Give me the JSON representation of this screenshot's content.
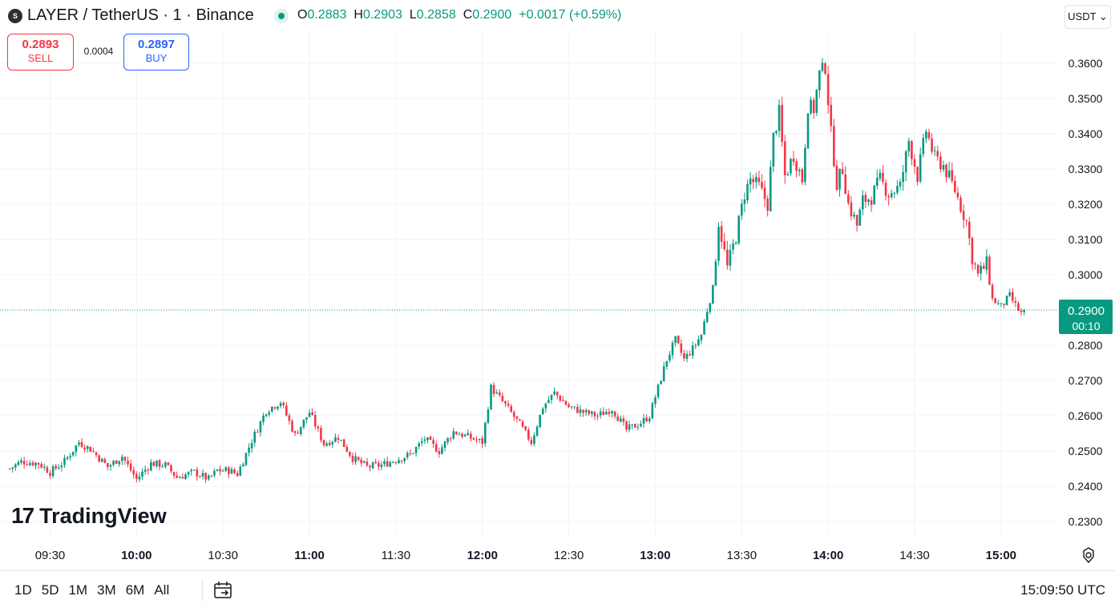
{
  "header": {
    "symbol_logo": "S",
    "title": "LAYER / TetherUS · 1 · Binance",
    "ohlc": [
      {
        "label": "O",
        "value": "0.2883"
      },
      {
        "label": "H",
        "value": "0.2903"
      },
      {
        "label": "L",
        "value": "0.2858"
      },
      {
        "label": "C",
        "value": "0.2900"
      },
      {
        "label": "",
        "value": "+0.0017 (+0.59%)"
      }
    ],
    "currency": "USDT ⌄"
  },
  "trade": {
    "sell_price": "0.2893",
    "sell_label": "SELL",
    "spread": "0.0004",
    "buy_price": "0.2897",
    "buy_label": "BUY"
  },
  "watermark": {
    "mark": "17",
    "word": "TradingView"
  },
  "bottom": {
    "ranges": [
      "1D",
      "5D",
      "1M",
      "3M",
      "6M",
      "All"
    ],
    "clock": "15:09:50 UTC"
  },
  "colors": {
    "up": "#089981",
    "down": "#f23645",
    "grid": "#f0f3fa",
    "text": "#131722"
  },
  "chart_data": {
    "type": "candlestick",
    "title": "LAYER / TetherUS · 1 · Binance",
    "ylim": [
      0.2255,
      0.3705
    ],
    "y_ticks": [
      "0.3600",
      "0.3500",
      "0.3400",
      "0.3300",
      "0.3200",
      "0.3100",
      "0.3000",
      "0.2800",
      "0.2700",
      "0.2600",
      "0.2500",
      "0.2400",
      "0.2300"
    ],
    "x_ticks": [
      {
        "label": "09:30",
        "minute": 570,
        "bold": false
      },
      {
        "label": "10:00",
        "minute": 600,
        "bold": true
      },
      {
        "label": "10:30",
        "minute": 630,
        "bold": false
      },
      {
        "label": "11:00",
        "minute": 660,
        "bold": true
      },
      {
        "label": "11:30",
        "minute": 690,
        "bold": false
      },
      {
        "label": "12:00",
        "minute": 720,
        "bold": true
      },
      {
        "label": "12:30",
        "minute": 750,
        "bold": false
      },
      {
        "label": "13:00",
        "minute": 780,
        "bold": true
      },
      {
        "label": "13:30",
        "minute": 810,
        "bold": false
      },
      {
        "label": "14:00",
        "minute": 840,
        "bold": true
      },
      {
        "label": "14:30",
        "minute": 870,
        "bold": false
      },
      {
        "label": "15:00",
        "minute": 900,
        "bold": true
      }
    ],
    "last_price": {
      "value": 0.29,
      "label": "0.2900",
      "countdown": "00:10"
    },
    "path_close": [
      [
        556,
        0.245
      ],
      [
        560,
        0.247
      ],
      [
        566,
        0.2465
      ],
      [
        570,
        0.244
      ],
      [
        575,
        0.247
      ],
      [
        580,
        0.2525
      ],
      [
        584,
        0.2505
      ],
      [
        590,
        0.2455
      ],
      [
        595,
        0.2485
      ],
      [
        600,
        0.242
      ],
      [
        605,
        0.2465
      ],
      [
        610,
        0.246
      ],
      [
        614,
        0.2425
      ],
      [
        620,
        0.244
      ],
      [
        625,
        0.242
      ],
      [
        628,
        0.2445
      ],
      [
        632,
        0.2445
      ],
      [
        635,
        0.2435
      ],
      [
        640,
        0.253
      ],
      [
        645,
        0.2615
      ],
      [
        650,
        0.264
      ],
      [
        655,
        0.2545
      ],
      [
        660,
        0.261
      ],
      [
        665,
        0.252
      ],
      [
        670,
        0.254
      ],
      [
        675,
        0.248
      ],
      [
        680,
        0.2455
      ],
      [
        685,
        0.246
      ],
      [
        690,
        0.2475
      ],
      [
        695,
        0.249
      ],
      [
        700,
        0.2535
      ],
      [
        705,
        0.25
      ],
      [
        710,
        0.2555
      ],
      [
        715,
        0.254
      ],
      [
        720,
        0.2525
      ],
      [
        723,
        0.268
      ],
      [
        728,
        0.263
      ],
      [
        733,
        0.2575
      ],
      [
        737,
        0.2525
      ],
      [
        741,
        0.2625
      ],
      [
        745,
        0.2665
      ],
      [
        750,
        0.2625
      ],
      [
        755,
        0.261
      ],
      [
        760,
        0.26
      ],
      [
        765,
        0.262
      ],
      [
        770,
        0.256
      ],
      [
        775,
        0.258
      ],
      [
        778,
        0.26
      ],
      [
        781,
        0.268
      ],
      [
        784,
        0.276
      ],
      [
        787,
        0.2815
      ],
      [
        790,
        0.276
      ],
      [
        793,
        0.279
      ],
      [
        796,
        0.283
      ],
      [
        798,
        0.29
      ],
      [
        800,
        0.296
      ],
      [
        802,
        0.315
      ],
      [
        805,
        0.302
      ],
      [
        808,
        0.311
      ],
      [
        811,
        0.323
      ],
      [
        813,
        0.327
      ],
      [
        816,
        0.325
      ],
      [
        819,
        0.32
      ],
      [
        821,
        0.339
      ],
      [
        823,
        0.346
      ],
      [
        825,
        0.328
      ],
      [
        828,
        0.334
      ],
      [
        831,
        0.327
      ],
      [
        833,
        0.348
      ],
      [
        835,
        0.347
      ],
      [
        837,
        0.357
      ],
      [
        839,
        0.359
      ],
      [
        841,
        0.34
      ],
      [
        843,
        0.326
      ],
      [
        845,
        0.33
      ],
      [
        847,
        0.32
      ],
      [
        850,
        0.314
      ],
      [
        852,
        0.321
      ],
      [
        855,
        0.322
      ],
      [
        858,
        0.327
      ],
      [
        861,
        0.323
      ],
      [
        865,
        0.325
      ],
      [
        868,
        0.338
      ],
      [
        871,
        0.328
      ],
      [
        874,
        0.341
      ],
      [
        877,
        0.333
      ],
      [
        880,
        0.331
      ],
      [
        884,
        0.324
      ],
      [
        888,
        0.315
      ],
      [
        890,
        0.305
      ],
      [
        892,
        0.3
      ],
      [
        895,
        0.303
      ],
      [
        897,
        0.293
      ],
      [
        900,
        0.291
      ],
      [
        903,
        0.294
      ],
      [
        906,
        0.29
      ],
      [
        908,
        0.288
      ]
    ]
  }
}
